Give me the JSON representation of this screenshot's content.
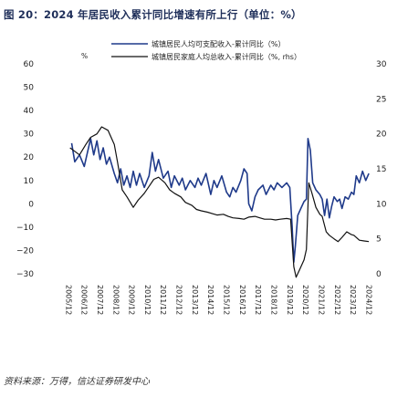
{
  "title": "图 20：2024 年居民收入累计同比增速有所上行（单位：%）",
  "source": "资料来源：万得，信达证券研发中心",
  "chart_data": {
    "type": "line",
    "unit_label": "%",
    "x_ticks": [
      "2005/12",
      "2006/12",
      "2007/12",
      "2008/12",
      "2009/12",
      "2010/12",
      "2011/12",
      "2012/12",
      "2013/12",
      "2014/12",
      "2015/12",
      "2016/12",
      "2017/12",
      "2018/12",
      "2019/12",
      "2020/12",
      "2021/12",
      "2022/12",
      "2023/12",
      "2024/12"
    ],
    "x_range": [
      2005.9,
      2024.95
    ],
    "y_left": {
      "ticks": [
        60,
        50,
        40,
        30,
        20,
        10,
        0,
        -10,
        -20,
        -30
      ],
      "range": [
        -30,
        60
      ]
    },
    "y_right": {
      "ticks": [
        30,
        25,
        20,
        15,
        10,
        5,
        0
      ],
      "range": [
        0,
        30
      ]
    },
    "series": [
      {
        "name": "城镇居民人均可支配收入-累计同比（%）",
        "axis": "left",
        "color": "#1f3a8a",
        "points": [
          [
            2006.1,
            26
          ],
          [
            2006.3,
            18
          ],
          [
            2006.6,
            21
          ],
          [
            2006.9,
            16
          ],
          [
            2007.1,
            22
          ],
          [
            2007.3,
            28
          ],
          [
            2007.5,
            21
          ],
          [
            2007.7,
            27
          ],
          [
            2007.9,
            19
          ],
          [
            2008.1,
            24
          ],
          [
            2008.3,
            17
          ],
          [
            2008.5,
            20
          ],
          [
            2008.8,
            13
          ],
          [
            2009.0,
            9
          ],
          [
            2009.2,
            15
          ],
          [
            2009.4,
            8
          ],
          [
            2009.6,
            12
          ],
          [
            2009.8,
            7
          ],
          [
            2010.0,
            14
          ],
          [
            2010.2,
            8
          ],
          [
            2010.4,
            13
          ],
          [
            2010.7,
            7
          ],
          [
            2011.0,
            12
          ],
          [
            2011.2,
            22
          ],
          [
            2011.4,
            14
          ],
          [
            2011.6,
            19
          ],
          [
            2011.9,
            11
          ],
          [
            2012.2,
            14
          ],
          [
            2012.4,
            7
          ],
          [
            2012.6,
            12
          ],
          [
            2012.9,
            8
          ],
          [
            2013.1,
            11
          ],
          [
            2013.3,
            6
          ],
          [
            2013.6,
            10
          ],
          [
            2013.9,
            7
          ],
          [
            2014.1,
            11
          ],
          [
            2014.3,
            8
          ],
          [
            2014.6,
            13
          ],
          [
            2014.9,
            4
          ],
          [
            2015.1,
            10
          ],
          [
            2015.3,
            7
          ],
          [
            2015.6,
            12
          ],
          [
            2015.9,
            5
          ],
          [
            2016.1,
            3
          ],
          [
            2016.3,
            7
          ],
          [
            2016.5,
            5
          ],
          [
            2016.8,
            10
          ],
          [
            2017.0,
            15
          ],
          [
            2017.2,
            13
          ],
          [
            2017.3,
            0
          ],
          [
            2017.5,
            -3
          ],
          [
            2017.7,
            3
          ],
          [
            2017.9,
            6
          ],
          [
            2018.2,
            8
          ],
          [
            2018.4,
            4
          ],
          [
            2018.7,
            8
          ],
          [
            2018.9,
            6
          ],
          [
            2019.1,
            9
          ],
          [
            2019.4,
            7
          ],
          [
            2019.7,
            9
          ],
          [
            2019.9,
            7
          ],
          [
            2020.05,
            -10
          ],
          [
            2020.15,
            -25
          ],
          [
            2020.25,
            -18
          ],
          [
            2020.4,
            -5
          ],
          [
            2020.6,
            -2
          ],
          [
            2020.8,
            1
          ],
          [
            2020.95,
            2
          ],
          [
            2021.05,
            28
          ],
          [
            2021.2,
            23
          ],
          [
            2021.35,
            9
          ],
          [
            2021.55,
            6
          ],
          [
            2021.8,
            4
          ],
          [
            2021.95,
            2
          ],
          [
            2022.1,
            -5
          ],
          [
            2022.25,
            2
          ],
          [
            2022.4,
            -6
          ],
          [
            2022.55,
            -1
          ],
          [
            2022.7,
            3
          ],
          [
            2022.9,
            1
          ],
          [
            2023.05,
            2
          ],
          [
            2023.2,
            -2
          ],
          [
            2023.4,
            3
          ],
          [
            2023.6,
            2
          ],
          [
            2023.8,
            5
          ],
          [
            2023.95,
            4
          ],
          [
            2024.1,
            12
          ],
          [
            2024.3,
            9
          ],
          [
            2024.5,
            14
          ],
          [
            2024.7,
            10
          ],
          [
            2024.9,
            13
          ]
        ]
      },
      {
        "name": "城镇居民家庭人均总收入-累计同比（%, rhs）",
        "axis": "right",
        "color": "#111111",
        "points": [
          [
            2006.0,
            18
          ],
          [
            2006.3,
            17.5
          ],
          [
            2006.6,
            17
          ],
          [
            2007.0,
            18.5
          ],
          [
            2007.3,
            19.5
          ],
          [
            2007.7,
            20
          ],
          [
            2008.0,
            21
          ],
          [
            2008.4,
            20.5
          ],
          [
            2008.8,
            18.5
          ],
          [
            2009.0,
            16
          ],
          [
            2009.3,
            12
          ],
          [
            2009.6,
            11
          ],
          [
            2010.0,
            9.5
          ],
          [
            2010.3,
            10.5
          ],
          [
            2010.7,
            11.5
          ],
          [
            2011.0,
            12.5
          ],
          [
            2011.3,
            13.5
          ],
          [
            2011.6,
            13.8
          ],
          [
            2012.0,
            13
          ],
          [
            2012.3,
            12
          ],
          [
            2012.6,
            11.5
          ],
          [
            2013.0,
            11
          ],
          [
            2013.3,
            10.2
          ],
          [
            2013.7,
            9.8
          ],
          [
            2014.0,
            9.2
          ],
          [
            2014.3,
            9
          ],
          [
            2014.7,
            8.8
          ],
          [
            2015.0,
            8.6
          ],
          [
            2015.3,
            8.4
          ],
          [
            2015.7,
            8.5
          ],
          [
            2016.0,
            8.2
          ],
          [
            2016.3,
            8
          ],
          [
            2016.7,
            7.9
          ],
          [
            2017.0,
            7.8
          ],
          [
            2017.3,
            8.1
          ],
          [
            2017.7,
            8.2
          ],
          [
            2018.0,
            8
          ],
          [
            2018.3,
            7.8
          ],
          [
            2018.7,
            7.8
          ],
          [
            2019.0,
            7.7
          ],
          [
            2019.3,
            7.8
          ],
          [
            2019.7,
            7.9
          ],
          [
            2019.95,
            7.8
          ],
          [
            2020.15,
            1
          ],
          [
            2020.3,
            -0.5
          ],
          [
            2020.5,
            0.5
          ],
          [
            2020.8,
            2
          ],
          [
            2020.95,
            3.5
          ],
          [
            2021.1,
            13
          ],
          [
            2021.3,
            11.5
          ],
          [
            2021.55,
            9.5
          ],
          [
            2021.8,
            8.5
          ],
          [
            2021.95,
            8.2
          ],
          [
            2022.2,
            6
          ],
          [
            2022.4,
            5.5
          ],
          [
            2022.7,
            5
          ],
          [
            2022.95,
            4.6
          ],
          [
            2023.2,
            5.2
          ],
          [
            2023.5,
            6
          ],
          [
            2023.8,
            5.6
          ],
          [
            2023.95,
            5.5
          ],
          [
            2024.3,
            4.8
          ],
          [
            2024.6,
            4.7
          ],
          [
            2024.9,
            4.6
          ]
        ]
      }
    ]
  }
}
